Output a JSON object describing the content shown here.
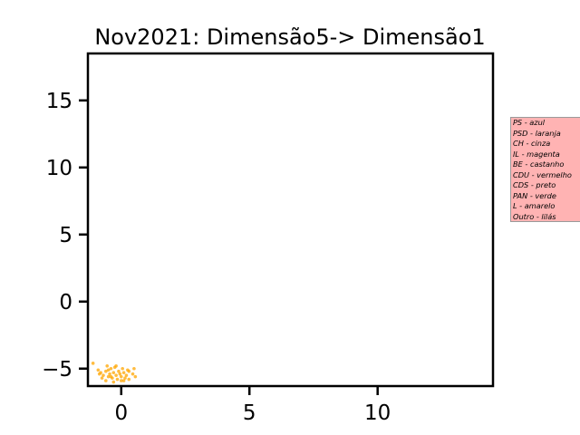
{
  "chart_data": {
    "type": "scatter",
    "title": "Nov2021: Dimensão5-> Dimensão1",
    "xlabel": "",
    "ylabel": "",
    "xlim": [
      -1.3,
      14.5
    ],
    "ylim": [
      -6.3,
      18.5
    ],
    "xticks": [
      0,
      5,
      10
    ],
    "yticks": [
      -5,
      0,
      5,
      10,
      15
    ],
    "grid": false,
    "legend_placement": "outside right",
    "legend": [
      "PS - azul",
      "PSD - laranja",
      "CH - cinza",
      "IL - magenta",
      "BE - castanho",
      "CDU - vermelho",
      "CDS - preto",
      "PAN - verde",
      "L - amarelo",
      "Outro - lilás"
    ],
    "series": [
      {
        "color": "#ffa500",
        "points": [
          [
            -1.1,
            -4.6
          ],
          [
            -0.9,
            -5.1
          ],
          [
            -0.8,
            -5.3
          ],
          [
            -0.7,
            -5.5
          ],
          [
            -0.6,
            -5.2
          ],
          [
            -0.55,
            -4.8
          ],
          [
            -0.5,
            -5.6
          ],
          [
            -0.45,
            -5.4
          ],
          [
            -0.4,
            -5.0
          ],
          [
            -0.35,
            -5.7
          ],
          [
            -0.3,
            -5.3
          ],
          [
            -0.25,
            -4.9
          ],
          [
            -0.2,
            -5.5
          ],
          [
            -0.15,
            -5.8
          ],
          [
            -0.1,
            -5.2
          ],
          [
            -0.05,
            -5.4
          ],
          [
            0.0,
            -5.6
          ],
          [
            0.05,
            -5.0
          ],
          [
            0.1,
            -5.3
          ],
          [
            0.15,
            -5.7
          ],
          [
            0.2,
            -5.5
          ],
          [
            0.25,
            -5.1
          ],
          [
            -0.6,
            -5.9
          ],
          [
            -0.3,
            -6.0
          ],
          [
            0.0,
            -5.9
          ],
          [
            0.3,
            -5.8
          ],
          [
            0.45,
            -5.4
          ],
          [
            0.5,
            -5.0
          ],
          [
            -0.75,
            -5.7
          ],
          [
            -0.5,
            -5.1
          ],
          [
            -0.2,
            -4.8
          ],
          [
            0.1,
            -5.9
          ],
          [
            -0.4,
            -5.6
          ],
          [
            0.3,
            -5.2
          ],
          [
            -0.85,
            -5.4
          ],
          [
            0.55,
            -5.6
          ]
        ]
      }
    ]
  }
}
